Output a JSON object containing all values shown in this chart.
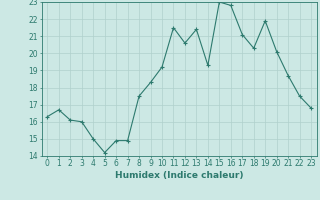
{
  "x": [
    0,
    1,
    2,
    3,
    4,
    5,
    6,
    7,
    8,
    9,
    10,
    11,
    12,
    13,
    14,
    15,
    16,
    17,
    18,
    19,
    20,
    21,
    22,
    23
  ],
  "y": [
    16.3,
    16.7,
    16.1,
    16.0,
    15.0,
    14.2,
    14.9,
    14.9,
    17.5,
    18.3,
    19.2,
    21.5,
    20.6,
    21.4,
    19.3,
    23.0,
    22.8,
    21.1,
    20.3,
    21.9,
    20.1,
    18.7,
    17.5,
    16.8
  ],
  "line_color": "#2d7a6e",
  "marker": "+",
  "marker_color": "#2d7a6e",
  "bg_color": "#cce8e4",
  "grid_color": "#b0d0cc",
  "tick_color": "#2d7a6e",
  "axis_color": "#2d7a6e",
  "xlabel": "Humidex (Indice chaleur)",
  "xlabel_color": "#2d7a6e",
  "ylim": [
    14,
    23
  ],
  "yticks": [
    14,
    15,
    16,
    17,
    18,
    19,
    20,
    21,
    22,
    23
  ],
  "xticks": [
    0,
    1,
    2,
    3,
    4,
    5,
    6,
    7,
    8,
    9,
    10,
    11,
    12,
    13,
    14,
    15,
    16,
    17,
    18,
    19,
    20,
    21,
    22,
    23
  ],
  "label_fontsize": 6.5,
  "tick_fontsize": 5.5
}
